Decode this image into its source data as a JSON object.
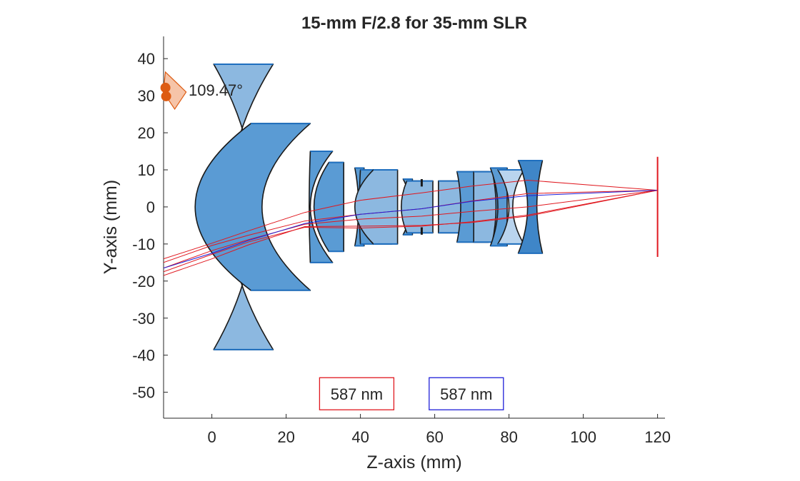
{
  "chart_data": {
    "type": "lens-layout",
    "title": "15-mm F/2.8 for 35-mm SLR",
    "xlabel": "Z-axis (mm)",
    "ylabel": "Y-axis (mm)",
    "xlim": [
      -13,
      122
    ],
    "ylim": [
      -57,
      46
    ],
    "xticks": [
      0,
      20,
      40,
      60,
      80,
      100,
      120
    ],
    "yticks": [
      40,
      30,
      20,
      10,
      0,
      -10,
      -20,
      -30,
      -40,
      -50
    ],
    "field_angle_label": "109.47°",
    "image_plane": {
      "z": 120,
      "half_height": 13.5
    },
    "lenses": [
      {
        "z1": 0.5,
        "z2": 16.5,
        "half_height": 38.5,
        "sag1": 11.0,
        "sag2": -12.0,
        "fill": "#8cb8e0"
      },
      {
        "z1": 10.5,
        "z2": 26.5,
        "half_height": 22.5,
        "sag1": -15.0,
        "sag2": -13.0,
        "fill": "#5a9bd4"
      },
      {
        "z1": 26.5,
        "z2": 32.5,
        "half_height": 15.0,
        "sag1": -0.3,
        "sag2": -6.0,
        "fill": "#5a9bd4"
      },
      {
        "z1": 31.5,
        "z2": 35.5,
        "half_height": 12.0,
        "sag1": -4.0,
        "sag2": 0.0,
        "fill": "#5a9bd4"
      },
      {
        "z1": 38.5,
        "z2": 41.0,
        "half_height": 10.5,
        "sag1": 1.0,
        "sag2": -1.0,
        "fill": "#5a9bd4"
      },
      {
        "z1": 40.0,
        "z2": 48.5,
        "half_height": 10.0,
        "sag1": -0.3,
        "sag2": -5.0,
        "fill": "#5a9bd4"
      },
      {
        "z1": 43.5,
        "z2": 50.0,
        "half_height": 10.0,
        "sag1": -5.0,
        "sag2": 0.0,
        "fill": "#8cb8e0"
      },
      {
        "z1": 51.5,
        "z2": 54.0,
        "half_height": 7.5,
        "sag1": 2.0,
        "sag2": 0.0,
        "fill": "#5a9bd4"
      },
      {
        "z1": 52.5,
        "z2": 59.5,
        "half_height": 7.0,
        "sag1": -1.5,
        "sag2": 0.0,
        "fill": "#8cb8e0"
      },
      {
        "z1": 61.0,
        "z2": 67.0,
        "half_height": 7.0,
        "sag1": 0.0,
        "sag2": 1.5,
        "fill": "#8cb8e0"
      },
      {
        "z1": 66.0,
        "z2": 74.5,
        "half_height": 9.5,
        "sag1": 1.0,
        "sag2": 3.0,
        "fill": "#5a9bd4"
      },
      {
        "z1": 70.5,
        "z2": 75.5,
        "half_height": 9.5,
        "sag1": 0.0,
        "sag2": 1.0,
        "fill": "#8cb8e0"
      },
      {
        "z1": 75.0,
        "z2": 79.5,
        "half_height": 10.5,
        "sag1": 2.0,
        "sag2": 0.0,
        "fill": "#5a9bd4"
      },
      {
        "z1": 77.0,
        "z2": 84.0,
        "half_height": 10.0,
        "sag1": 3.0,
        "sag2": -3.0,
        "fill": "#b9d4ee"
      },
      {
        "z1": 82.5,
        "z2": 89.0,
        "half_height": 12.5,
        "sag1": 2.5,
        "sag2": -1.5,
        "fill": "#3f86c8"
      }
    ],
    "stop": {
      "z": 56.5,
      "opening": 5.5,
      "blade": 2.0
    },
    "rays": [
      {
        "wavelength": "587 nm",
        "color": "#e0181f",
        "points": [
          [
            -13,
            -15.0
          ],
          [
            0,
            -10.4
          ],
          [
            10,
            -7.6
          ],
          [
            25,
            -3.8
          ],
          [
            40,
            -2.0
          ],
          [
            56.5,
            -0.5
          ],
          [
            70,
            1.6
          ],
          [
            85,
            3.6
          ],
          [
            120,
            4.5
          ]
        ]
      },
      {
        "wavelength": "587 nm",
        "color": "#e0181f",
        "points": [
          [
            -13,
            -16.5
          ],
          [
            0,
            -11.8
          ],
          [
            10,
            -8.8
          ],
          [
            25,
            -4.7
          ],
          [
            40,
            -3.3
          ],
          [
            56.5,
            -2.5
          ],
          [
            70,
            -1.2
          ],
          [
            85,
            0.0
          ],
          [
            120,
            4.5
          ]
        ]
      },
      {
        "wavelength": "587 nm",
        "color": "#e0181f",
        "points": [
          [
            -13,
            -18.5
          ],
          [
            0,
            -14.0
          ],
          [
            10,
            -10.2
          ],
          [
            25,
            -5.3
          ],
          [
            40,
            -5.2
          ],
          [
            56.5,
            -5.0
          ],
          [
            70,
            -4.2
          ],
          [
            85,
            -2.5
          ],
          [
            120,
            4.5
          ]
        ]
      },
      {
        "wavelength": "587 nm",
        "color": "#e0181f",
        "points": [
          [
            -13,
            -14.0
          ],
          [
            0,
            -9.8
          ],
          [
            10,
            -6.4
          ],
          [
            25,
            -1.5
          ],
          [
            40,
            1.8
          ],
          [
            56.5,
            3.8
          ],
          [
            70,
            5.6
          ],
          [
            85,
            7.2
          ],
          [
            120,
            4.5
          ]
        ]
      },
      {
        "wavelength": "587 nm",
        "color": "#e0181f",
        "points": [
          [
            -13,
            -17.5
          ],
          [
            0,
            -12.8
          ],
          [
            10,
            -9.4
          ],
          [
            25,
            -5.5
          ],
          [
            40,
            -5.7
          ],
          [
            56.5,
            -5.2
          ],
          [
            70,
            -4.0
          ],
          [
            85,
            -2.2
          ],
          [
            120,
            4.5
          ]
        ]
      },
      {
        "wavelength": "587 nm",
        "color": "#1f1fd9",
        "points": [
          [
            -13,
            -16.5
          ],
          [
            0,
            -12.5
          ],
          [
            10,
            -9.0
          ],
          [
            25,
            -4.5
          ],
          [
            40,
            -2.0
          ],
          [
            56.5,
            -0.5
          ],
          [
            70,
            1.5
          ],
          [
            85,
            3.0
          ],
          [
            120,
            4.5
          ]
        ]
      }
    ],
    "legend": [
      {
        "label": "587 nm",
        "color": "#e0181f",
        "z": 39,
        "y": -50.5
      },
      {
        "label": "587 nm",
        "color": "#1f1fd9",
        "z": 68.5,
        "y": -50.5
      }
    ],
    "field_indicator": {
      "z": -12.5,
      "y": 31,
      "color": "#dd5b12",
      "fill": "#f6c4a8"
    }
  }
}
